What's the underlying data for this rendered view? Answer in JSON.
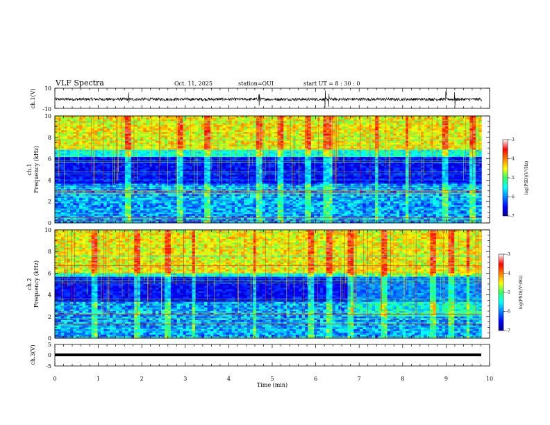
{
  "header": {
    "title": "VLF Spectra",
    "date": "Oct. 11, 2025",
    "station": "station=OUI",
    "start": "start  UT =  8 : 30 : 0"
  },
  "colors": {
    "trace": "#000000",
    "bg_dark": "#0b1a8c"
  },
  "chart_data": [
    {
      "type": "line",
      "name": "ch1-waveform",
      "ylabel": "ch.1(V)",
      "xlim": [
        0,
        10
      ],
      "ylim": [
        -10,
        10
      ],
      "yticks": [
        "10",
        "-10"
      ],
      "baseline": -1,
      "noise_amplitude": 1.5,
      "spikes_min": [
        1.7,
        4.7,
        6.22,
        6.3,
        9.0,
        9.2
      ]
    },
    {
      "type": "heatmap",
      "name": "ch1-spectrogram",
      "ylabel": "ch.1\nFrequency (kHz)",
      "xlim": [
        0,
        10
      ],
      "ylim": [
        0,
        10
      ],
      "data_end_min": 9.82,
      "yticks": [
        "0",
        "2",
        "4",
        "6",
        "8",
        "10"
      ],
      "colorbar": {
        "label": "log(PSD)(V²/Hz)",
        "min": -7,
        "max": -3,
        "ticks": [
          "-3",
          "-4",
          "-5",
          "-6",
          "-7"
        ]
      },
      "dark_band_khz": [
        3.6,
        6.2
      ],
      "bright_above_khz": 6.8,
      "red_lines_khz": [
        2.8,
        3.0,
        0.5,
        0.2
      ],
      "bursts_min": [
        1.7,
        2.9,
        3.5,
        4.7,
        5.2,
        5.8,
        6.2,
        6.3,
        7.4,
        8.1,
        9.0,
        9.6
      ]
    },
    {
      "type": "heatmap",
      "name": "ch2-spectrogram",
      "ylabel": "ch.2\nFrequency (kHz)",
      "xlim": [
        0,
        10
      ],
      "ylim": [
        0,
        10
      ],
      "data_end_min": 9.82,
      "yticks": [
        "0",
        "2",
        "4",
        "6",
        "8",
        "10"
      ],
      "colorbar": {
        "label": "log(PSD)(V²/Hz)",
        "min": -7,
        "max": -3,
        "ticks": [
          "-3",
          "-4",
          "-5",
          "-6",
          "-7"
        ]
      },
      "dark_band_khz": [
        3.4,
        5.6
      ],
      "bright_above_khz": 6.0,
      "red_lines_khz": [
        6.7,
        2.2,
        1.3
      ],
      "bursts_min": [
        0.9,
        1.9,
        2.6,
        3.2,
        4.6,
        5.9,
        6.3,
        6.8,
        7.6,
        8.7,
        9.1,
        9.5
      ]
    },
    {
      "type": "line",
      "name": "ch3-waveform",
      "ylabel": "ch.3(V)",
      "xlim": [
        0,
        10
      ],
      "ylim": [
        -5,
        5
      ],
      "yticks": [
        "5",
        "0",
        "-5"
      ],
      "constant_value": -1
    }
  ],
  "xaxis": {
    "label": "Time (min)",
    "ticks": [
      "0",
      "1",
      "2",
      "3",
      "4",
      "5",
      "6",
      "7",
      "8",
      "9",
      "10"
    ]
  }
}
